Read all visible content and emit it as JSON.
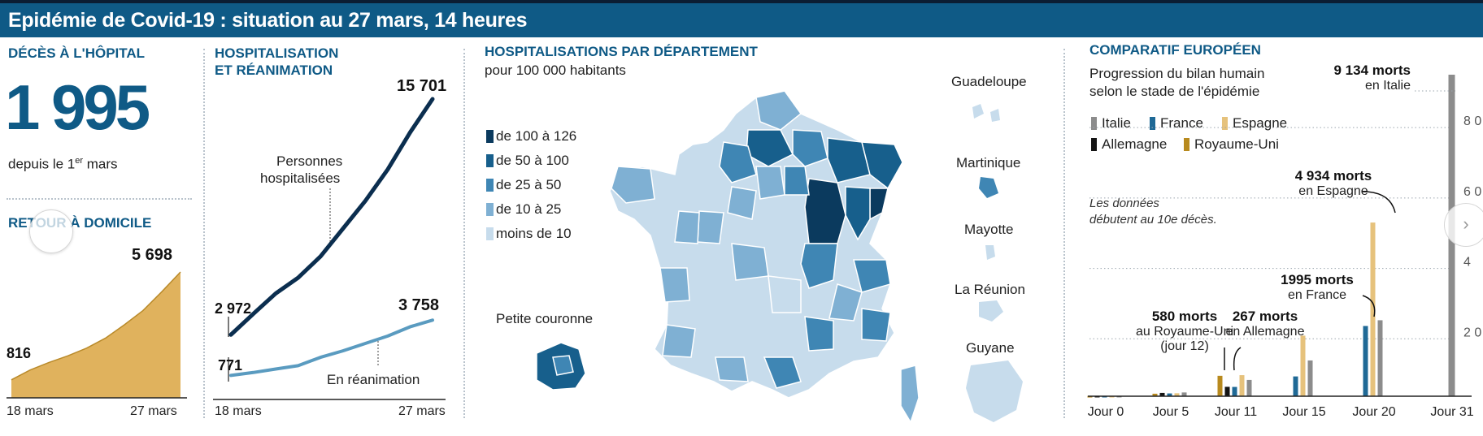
{
  "header": {
    "title": "Epidémie de Covid-19 : situation au 27 mars, 14 heures"
  },
  "deaths": {
    "title": "DÉCÈS À L'HÔPITAL",
    "value": "1 995",
    "since_prefix": "depuis le 1",
    "since_sup": "er",
    "since_suffix": " mars"
  },
  "home": {
    "title": "RETOUR À DOMICILE",
    "label_start": "816",
    "label_end": "5 698",
    "x_start": "18 mars",
    "x_end": "27 mars"
  },
  "hosp": {
    "title_line1": "HOSPITALISATION",
    "title_line2": "ET RÉANIMATION",
    "hosp_label_line1": "Personnes",
    "hosp_label_line2": "hospitalisées",
    "rea_label": "En réanimation",
    "hosp_start": "2 972",
    "hosp_end": "15 701",
    "rea_start": "771",
    "rea_end": "3 758",
    "x_start": "18 mars",
    "x_end": "27 mars"
  },
  "map": {
    "title": "HOSPITALISATIONS PAR DÉPARTEMENT",
    "subtitle": "pour 100 000 habitants",
    "legend": [
      {
        "label": "de 100 à 126",
        "color": "#0b3a5e"
      },
      {
        "label": "de 50 à 100",
        "color": "#175f8c"
      },
      {
        "label": "de 25 à 50",
        "color": "#3f86b4"
      },
      {
        "label": "de 10 à 25",
        "color": "#7fb0d3"
      },
      {
        "label": "moins de 10",
        "color": "#c7dcec"
      }
    ],
    "inset_label": "Petite couronne",
    "overseas": [
      "Guadeloupe",
      "Martinique",
      "Mayotte",
      "La Réunion",
      "Guyane"
    ]
  },
  "europe": {
    "title": "COMPARATIF EUROPÉEN",
    "subtitle_line1": "Progression du bilan humain",
    "subtitle_line2": "selon le stade de l'épidémie",
    "note_line1": "Les données",
    "note_line2": "débutent au 10e décès.",
    "legend": [
      {
        "name": "Italie",
        "color": "#8c8c8c"
      },
      {
        "name": "France",
        "color": "#1f6996"
      },
      {
        "name": "Espagne",
        "color": "#e6c27c"
      },
      {
        "name": "Allemagne",
        "color": "#141414"
      },
      {
        "name": "Royaume-Uni",
        "color": "#b88a1e"
      }
    ],
    "annotations": [
      {
        "line1": "9 134 morts",
        "line2": "en Italie"
      },
      {
        "line1": "4 934 morts",
        "line2": "en Espagne"
      },
      {
        "line1": "1995 morts",
        "line2": "en France"
      },
      {
        "line1": "580 morts",
        "line2": "au Royaume-Uni",
        "line3": "(jour 12)"
      },
      {
        "line1": "267 morts",
        "line2": "en Allemagne"
      }
    ],
    "y_ticks": [
      "8 0",
      "6 0",
      "4",
      "2 0"
    ],
    "x_ticks": [
      "Jour 0",
      "Jour 5",
      "Jour 11",
      "Jour 15",
      "Jour 20",
      "Jour 31"
    ]
  },
  "chart_data": [
    {
      "type": "area",
      "title": "RETOUR À DOMICILE",
      "x": [
        "18 mars",
        "19 mars",
        "20 mars",
        "21 mars",
        "22 mars",
        "23 mars",
        "24 mars",
        "25 mars",
        "26 mars",
        "27 mars"
      ],
      "values": [
        816,
        1260,
        1600,
        1900,
        2250,
        2700,
        3300,
        3950,
        4800,
        5698
      ]
    },
    {
      "type": "line",
      "title": "HOSPITALISATION ET RÉANIMATION",
      "x": [
        "18 mars",
        "19 mars",
        "20 mars",
        "21 mars",
        "22 mars",
        "23 mars",
        "24 mars",
        "25 mars",
        "26 mars",
        "27 mars"
      ],
      "series": [
        {
          "name": "Personnes hospitalisées",
          "values": [
            2972,
            4100,
            5200,
            6050,
            7200,
            8700,
            10200,
            11900,
            13900,
            15701
          ]
        },
        {
          "name": "En réanimation",
          "values": [
            771,
            930,
            1120,
            1300,
            1750,
            2100,
            2500,
            2900,
            3400,
            3758
          ]
        }
      ]
    },
    {
      "type": "bar",
      "title": "COMPARATIF EUROPÉEN",
      "categories": [
        "Jour 0",
        "Jour 5",
        "Jour 11",
        "Jour 15",
        "Jour 20",
        "Jour 31"
      ],
      "ylim": [
        0,
        9134
      ],
      "series": [
        {
          "name": "Italie",
          "values": [
            12,
            107,
            463,
            1016,
            2158,
            9134
          ]
        },
        {
          "name": "France",
          "values": [
            11,
            79,
            264,
            562,
            1995,
            null
          ]
        },
        {
          "name": "Espagne",
          "values": [
            10,
            84,
            598,
            1720,
            4934,
            null
          ]
        },
        {
          "name": "Allemagne",
          "values": [
            12,
            94,
            267,
            null,
            null,
            null
          ]
        },
        {
          "name": "Royaume-Uni",
          "values": [
            10,
            71,
            580,
            null,
            null,
            null
          ]
        }
      ]
    }
  ]
}
